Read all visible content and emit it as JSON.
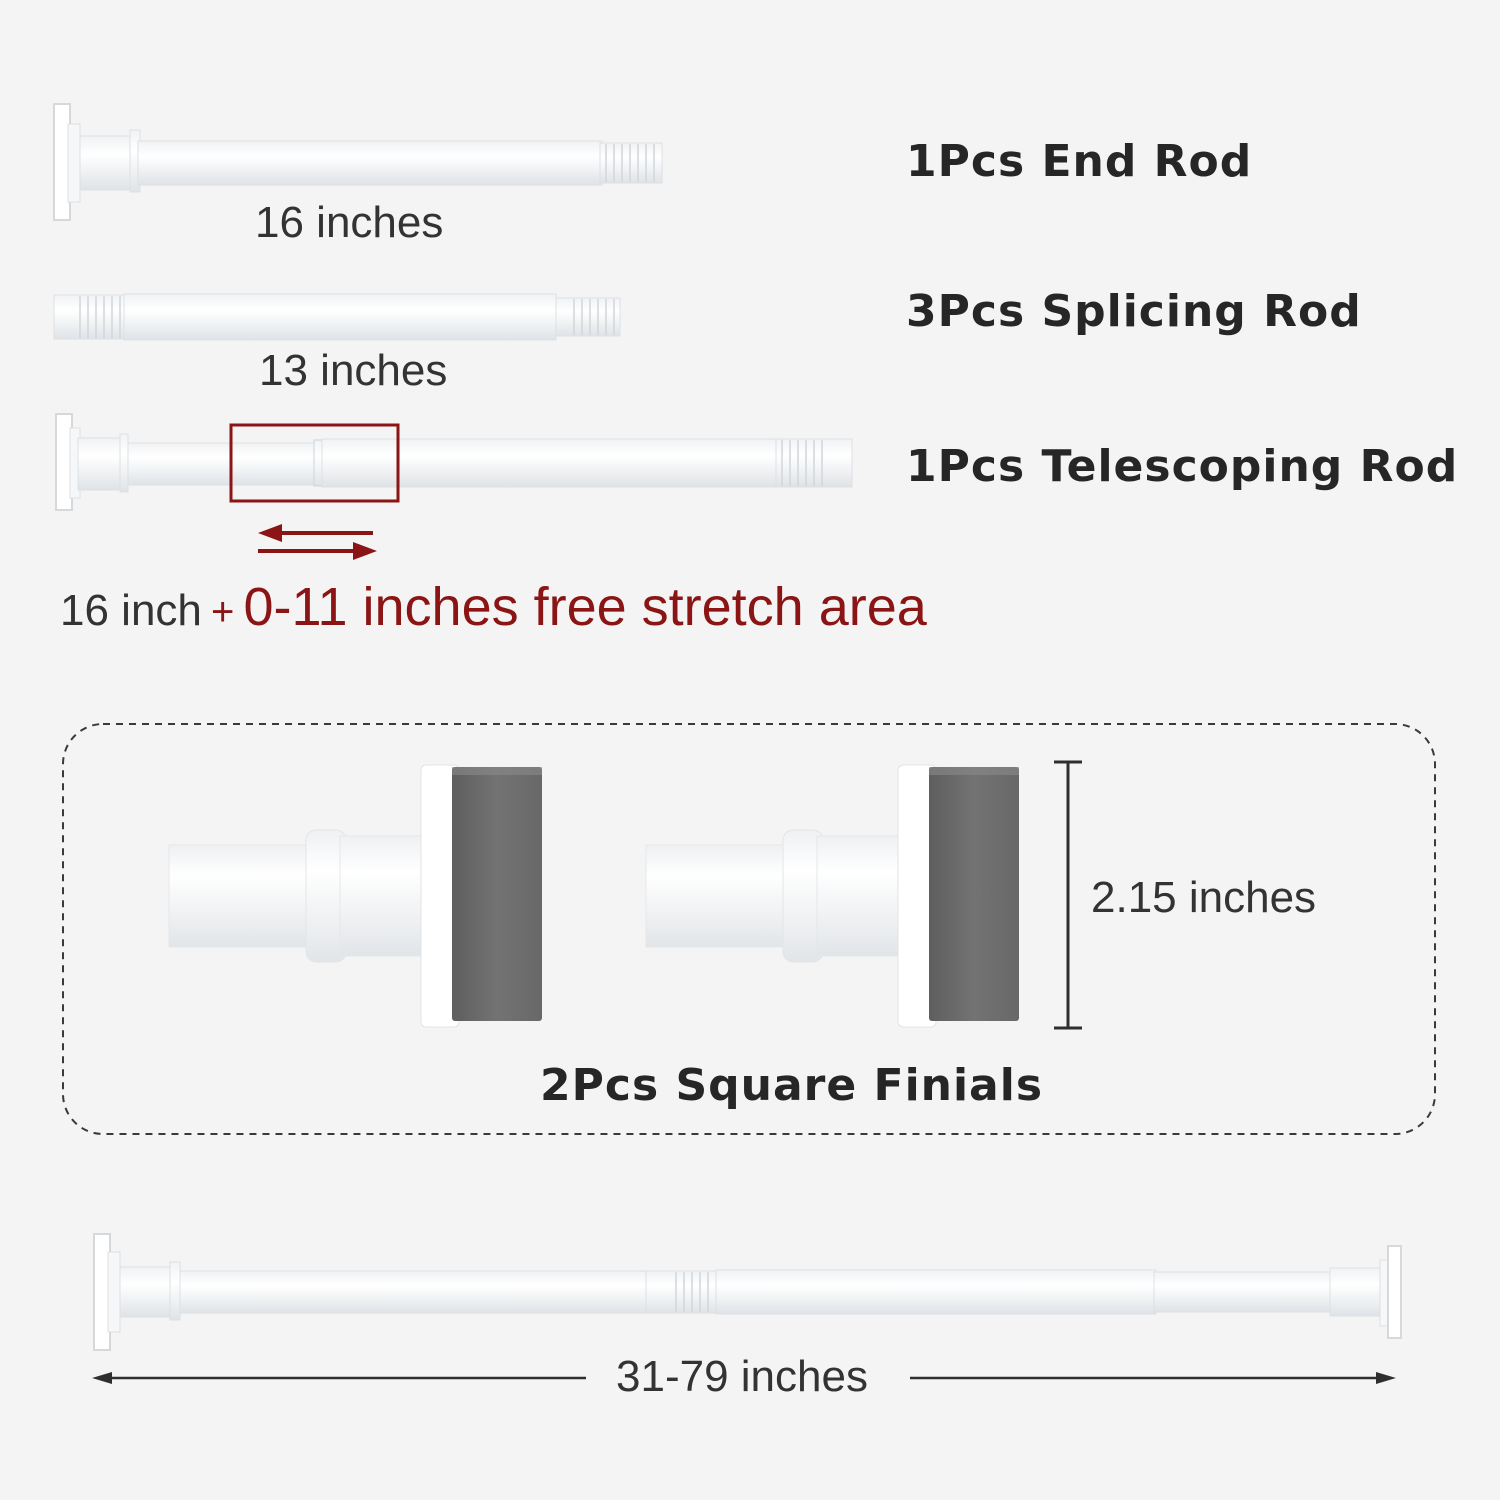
{
  "parts": {
    "end_rod": {
      "name": "1Pcs End Rod",
      "length": "16 inches"
    },
    "splicing_rod": {
      "name": "3Pcs Splicing Rod",
      "length": "13 inches"
    },
    "telescoping_rod": {
      "name": "1Pcs Telescoping Rod",
      "base_length": "16 inch",
      "plus": "+",
      "stretch_note": "0-11 inches free stretch area"
    },
    "finials": {
      "name": "2Pcs Square Finials",
      "height": "2.15 inches"
    },
    "assembled": {
      "range": "31-79 inches"
    }
  },
  "colors": {
    "accent": "#8b1414",
    "rod": "#ffffff",
    "pad": "#6e6e6e",
    "background": "#f4f4f4"
  }
}
